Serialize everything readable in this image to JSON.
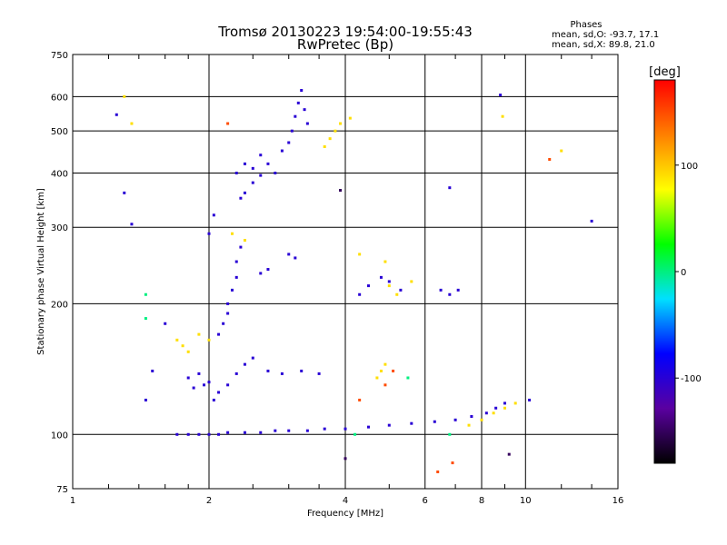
{
  "title": "Tromsø 20130223 19:54:00-19:55:43",
  "subtitle": "RwPretec (Bp)",
  "info": {
    "heading": "Phases",
    "line1": "mean, sd,O:  -93.7, 17.1",
    "line2": "mean, sd,X:   89.8, 21.0"
  },
  "chart_data": {
    "type": "scatter",
    "xlabel": "Frequency [MHz]",
    "ylabel": "Stationary phase Virtual Height [km]",
    "x_scale": "log",
    "y_scale": "log",
    "xlim": [
      1,
      16
    ],
    "ylim": [
      75,
      750
    ],
    "x_ticks": [
      1,
      2,
      4,
      6,
      8,
      10,
      16
    ],
    "y_ticks": [
      75,
      100,
      200,
      300,
      400,
      500,
      600,
      750
    ],
    "grid": true,
    "colorbar": {
      "label": "[deg]",
      "range": [
        -180,
        180
      ],
      "ticks": [
        100,
        0,
        -100
      ],
      "colors": [
        "#000000",
        "#5a00a0",
        "#0000ff",
        "#00e0ff",
        "#00ff00",
        "#ffff00",
        "#ff8000",
        "#ff0000"
      ]
    },
    "series": [
      {
        "phase": -100,
        "points": [
          [
            1.7,
            100
          ],
          [
            1.8,
            100
          ],
          [
            1.9,
            100
          ],
          [
            2.0,
            100
          ],
          [
            2.1,
            100
          ],
          [
            2.2,
            101
          ],
          [
            2.4,
            101
          ],
          [
            2.6,
            101
          ],
          [
            2.8,
            102
          ],
          [
            3.0,
            102
          ],
          [
            3.3,
            102
          ],
          [
            3.6,
            103
          ],
          [
            4.0,
            103
          ],
          [
            4.5,
            104
          ],
          [
            5.0,
            105
          ],
          [
            5.6,
            106
          ],
          [
            6.3,
            107
          ],
          [
            7.0,
            108
          ],
          [
            7.6,
            110
          ],
          [
            8.2,
            112
          ],
          [
            8.6,
            115
          ],
          [
            9.0,
            118
          ]
        ]
      },
      {
        "phase": -100,
        "points": [
          [
            2.05,
            120
          ],
          [
            2.1,
            125
          ],
          [
            2.2,
            130
          ],
          [
            2.3,
            138
          ],
          [
            2.4,
            145
          ],
          [
            2.5,
            150
          ],
          [
            2.7,
            140
          ],
          [
            2.9,
            138
          ],
          [
            3.2,
            140
          ],
          [
            3.5,
            138
          ],
          [
            1.8,
            135
          ],
          [
            1.9,
            138
          ],
          [
            2.0,
            132
          ],
          [
            1.85,
            128
          ],
          [
            1.95,
            130
          ]
        ]
      },
      {
        "phase": -100,
        "points": [
          [
            2.1,
            170
          ],
          [
            2.15,
            180
          ],
          [
            2.2,
            190
          ],
          [
            2.2,
            200
          ],
          [
            2.25,
            215
          ],
          [
            2.3,
            230
          ],
          [
            2.3,
            250
          ],
          [
            2.35,
            270
          ],
          [
            2.6,
            235
          ],
          [
            2.7,
            240
          ],
          [
            3.0,
            260
          ],
          [
            3.1,
            255
          ],
          [
            2.0,
            290
          ],
          [
            2.05,
            320
          ]
        ]
      },
      {
        "phase": -100,
        "points": [
          [
            2.3,
            400
          ],
          [
            2.4,
            420
          ],
          [
            2.5,
            410
          ],
          [
            2.6,
            440
          ],
          [
            2.7,
            420
          ],
          [
            2.8,
            400
          ],
          [
            2.9,
            450
          ],
          [
            3.0,
            470
          ],
          [
            3.05,
            500
          ],
          [
            3.1,
            540
          ],
          [
            3.15,
            580
          ],
          [
            3.2,
            620
          ],
          [
            3.25,
            560
          ],
          [
            3.3,
            520
          ],
          [
            2.5,
            380
          ],
          [
            2.6,
            395
          ],
          [
            2.4,
            360
          ],
          [
            2.35,
            350
          ]
        ]
      },
      {
        "phase": -100,
        "points": [
          [
            4.3,
            210
          ],
          [
            4.5,
            220
          ],
          [
            4.8,
            230
          ],
          [
            5.0,
            225
          ],
          [
            5.3,
            215
          ],
          [
            6.5,
            215
          ],
          [
            6.8,
            210
          ],
          [
            7.1,
            215
          ],
          [
            1.6,
            180
          ],
          [
            1.5,
            140
          ],
          [
            1.45,
            120
          ],
          [
            1.35,
            305
          ],
          [
            1.3,
            360
          ],
          [
            1.25,
            545
          ],
          [
            8.8,
            605
          ],
          [
            14.0,
            310
          ],
          [
            10.2,
            120
          ],
          [
            6.8,
            370
          ]
        ]
      },
      {
        "phase": 90,
        "points": [
          [
            1.7,
            165
          ],
          [
            1.75,
            160
          ],
          [
            1.8,
            155
          ],
          [
            1.9,
            170
          ],
          [
            2.0,
            165
          ],
          [
            3.6,
            460
          ],
          [
            3.7,
            480
          ],
          [
            3.8,
            500
          ],
          [
            3.9,
            520
          ],
          [
            4.1,
            535
          ],
          [
            4.7,
            135
          ],
          [
            4.8,
            140
          ],
          [
            4.9,
            145
          ],
          [
            5.0,
            220
          ],
          [
            5.2,
            210
          ],
          [
            5.6,
            225
          ],
          [
            7.5,
            105
          ],
          [
            8.0,
            108
          ],
          [
            8.5,
            112
          ],
          [
            9.0,
            115
          ],
          [
            9.5,
            118
          ],
          [
            1.3,
            600
          ],
          [
            1.35,
            520
          ],
          [
            12.0,
            450
          ],
          [
            8.9,
            540
          ],
          [
            4.3,
            260
          ],
          [
            4.9,
            250
          ],
          [
            2.25,
            290
          ],
          [
            2.4,
            280
          ]
        ]
      },
      {
        "phase": 150,
        "points": [
          [
            2.2,
            520
          ],
          [
            11.3,
            430
          ],
          [
            6.4,
            82
          ],
          [
            6.9,
            86
          ],
          [
            4.3,
            120
          ],
          [
            4.9,
            130
          ],
          [
            5.1,
            140
          ]
        ]
      },
      {
        "phase": 0,
        "points": [
          [
            1.45,
            210
          ],
          [
            1.45,
            185
          ],
          [
            5.5,
            135
          ],
          [
            6.8,
            100
          ],
          [
            4.2,
            100
          ]
        ]
      },
      {
        "phase": -150,
        "points": [
          [
            3.9,
            365
          ],
          [
            9.2,
            90
          ],
          [
            4.0,
            88
          ]
        ]
      }
    ]
  }
}
